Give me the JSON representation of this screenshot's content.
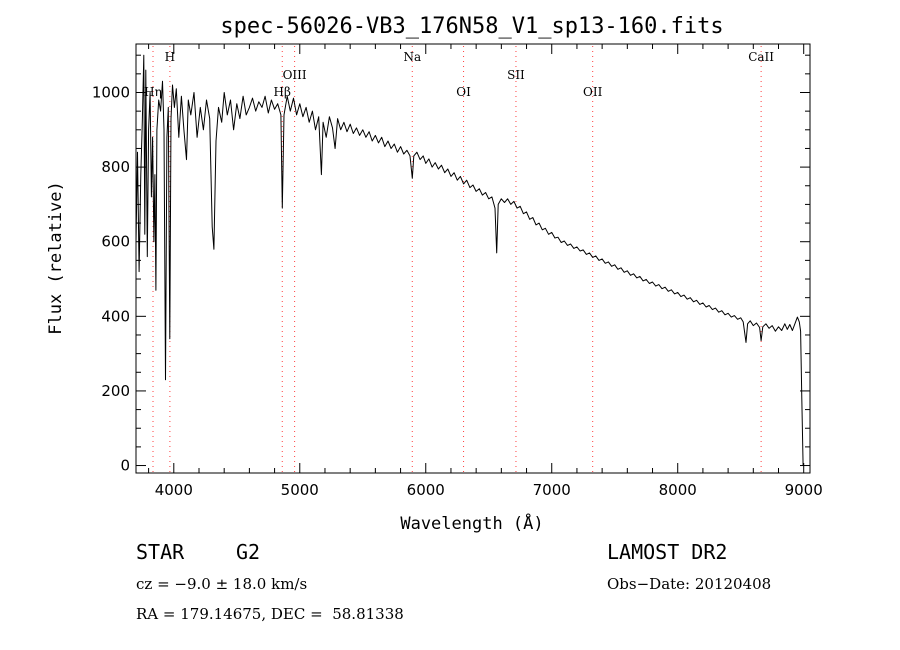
{
  "chart_data": {
    "type": "line",
    "title": "spec-56026-VB3_176N58_V1_sp13-160.fits",
    "xlabel": "Wavelength (Å)",
    "ylabel": "Flux (relative)",
    "xlim": [
      3700,
      9050
    ],
    "ylim": [
      -20,
      1130
    ],
    "xticks": [
      4000,
      5000,
      6000,
      7000,
      8000,
      9000
    ],
    "yticks": [
      0,
      200,
      400,
      600,
      800,
      1000
    ],
    "grid": false,
    "series": [
      {
        "name": "spectrum",
        "color": "#000000",
        "points": [
          [
            3700,
            600
          ],
          [
            3712,
            840
          ],
          [
            3725,
            520
          ],
          [
            3738,
            780
          ],
          [
            3750,
            920
          ],
          [
            3762,
            1100
          ],
          [
            3770,
            620
          ],
          [
            3778,
            1060
          ],
          [
            3790,
            560
          ],
          [
            3800,
            900
          ],
          [
            3812,
            1000
          ],
          [
            3822,
            720
          ],
          [
            3832,
            880
          ],
          [
            3842,
            600
          ],
          [
            3850,
            780
          ],
          [
            3858,
            470
          ],
          [
            3866,
            900
          ],
          [
            3880,
            980
          ],
          [
            3895,
            950
          ],
          [
            3910,
            1030
          ],
          [
            3922,
            900
          ],
          [
            3934,
            230
          ],
          [
            3945,
            880
          ],
          [
            3956,
            960
          ],
          [
            3968,
            340
          ],
          [
            3978,
            930
          ],
          [
            3990,
            1020
          ],
          [
            4005,
            960
          ],
          [
            4020,
            1010
          ],
          [
            4040,
            880
          ],
          [
            4060,
            990
          ],
          [
            4080,
            900
          ],
          [
            4101,
            820
          ],
          [
            4115,
            980
          ],
          [
            4135,
            940
          ],
          [
            4160,
            1000
          ],
          [
            4185,
            880
          ],
          [
            4210,
            960
          ],
          [
            4235,
            900
          ],
          [
            4260,
            980
          ],
          [
            4285,
            930
          ],
          [
            4305,
            640
          ],
          [
            4318,
            580
          ],
          [
            4335,
            870
          ],
          [
            4355,
            960
          ],
          [
            4380,
            920
          ],
          [
            4400,
            1000
          ],
          [
            4425,
            940
          ],
          [
            4450,
            980
          ],
          [
            4475,
            900
          ],
          [
            4500,
            970
          ],
          [
            4525,
            930
          ],
          [
            4550,
            990
          ],
          [
            4575,
            940
          ],
          [
            4600,
            960
          ],
          [
            4625,
            985
          ],
          [
            4650,
            950
          ],
          [
            4675,
            975
          ],
          [
            4700,
            960
          ],
          [
            4725,
            990
          ],
          [
            4750,
            945
          ],
          [
            4775,
            980
          ],
          [
            4800,
            955
          ],
          [
            4825,
            970
          ],
          [
            4850,
            940
          ],
          [
            4861,
            690
          ],
          [
            4875,
            940
          ],
          [
            4900,
            990
          ],
          [
            4925,
            950
          ],
          [
            4950,
            985
          ],
          [
            4975,
            940
          ],
          [
            5000,
            970
          ],
          [
            5025,
            935
          ],
          [
            5050,
            960
          ],
          [
            5075,
            920
          ],
          [
            5100,
            950
          ],
          [
            5125,
            900
          ],
          [
            5150,
            935
          ],
          [
            5172,
            780
          ],
          [
            5185,
            920
          ],
          [
            5210,
            880
          ],
          [
            5235,
            935
          ],
          [
            5260,
            905
          ],
          [
            5280,
            850
          ],
          [
            5300,
            930
          ],
          [
            5325,
            900
          ],
          [
            5350,
            920
          ],
          [
            5375,
            895
          ],
          [
            5400,
            915
          ],
          [
            5425,
            890
          ],
          [
            5450,
            905
          ],
          [
            5475,
            885
          ],
          [
            5500,
            900
          ],
          [
            5525,
            880
          ],
          [
            5550,
            895
          ],
          [
            5575,
            870
          ],
          [
            5600,
            885
          ],
          [
            5625,
            865
          ],
          [
            5650,
            880
          ],
          [
            5675,
            855
          ],
          [
            5700,
            870
          ],
          [
            5725,
            850
          ],
          [
            5750,
            862
          ],
          [
            5775,
            840
          ],
          [
            5800,
            855
          ],
          [
            5825,
            835
          ],
          [
            5850,
            845
          ],
          [
            5875,
            830
          ],
          [
            5893,
            770
          ],
          [
            5905,
            830
          ],
          [
            5930,
            840
          ],
          [
            5955,
            820
          ],
          [
            5980,
            830
          ],
          [
            6000,
            810
          ],
          [
            6025,
            822
          ],
          [
            6050,
            800
          ],
          [
            6075,
            812
          ],
          [
            6100,
            795
          ],
          [
            6125,
            805
          ],
          [
            6150,
            785
          ],
          [
            6175,
            795
          ],
          [
            6200,
            775
          ],
          [
            6225,
            785
          ],
          [
            6250,
            765
          ],
          [
            6275,
            775
          ],
          [
            6300,
            755
          ],
          [
            6325,
            765
          ],
          [
            6350,
            745
          ],
          [
            6375,
            752
          ],
          [
            6400,
            735
          ],
          [
            6425,
            742
          ],
          [
            6450,
            725
          ],
          [
            6475,
            732
          ],
          [
            6500,
            715
          ],
          [
            6525,
            720
          ],
          [
            6550,
            690
          ],
          [
            6563,
            570
          ],
          [
            6575,
            700
          ],
          [
            6600,
            715
          ],
          [
            6625,
            705
          ],
          [
            6650,
            715
          ],
          [
            6675,
            700
          ],
          [
            6700,
            708
          ],
          [
            6725,
            690
          ],
          [
            6750,
            695
          ],
          [
            6775,
            675
          ],
          [
            6800,
            680
          ],
          [
            6825,
            660
          ],
          [
            6850,
            665
          ],
          [
            6875,
            645
          ],
          [
            6900,
            650
          ],
          [
            6925,
            632
          ],
          [
            6950,
            636
          ],
          [
            6975,
            620
          ],
          [
            7000,
            625
          ],
          [
            7025,
            610
          ],
          [
            7050,
            612
          ],
          [
            7075,
            598
          ],
          [
            7100,
            602
          ],
          [
            7125,
            590
          ],
          [
            7150,
            594
          ],
          [
            7175,
            582
          ],
          [
            7200,
            586
          ],
          [
            7225,
            575
          ],
          [
            7250,
            578
          ],
          [
            7275,
            566
          ],
          [
            7300,
            570
          ],
          [
            7325,
            558
          ],
          [
            7350,
            562
          ],
          [
            7375,
            550
          ],
          [
            7400,
            554
          ],
          [
            7425,
            542
          ],
          [
            7450,
            546
          ],
          [
            7475,
            534
          ],
          [
            7500,
            538
          ],
          [
            7525,
            526
          ],
          [
            7550,
            530
          ],
          [
            7575,
            518
          ],
          [
            7600,
            522
          ],
          [
            7625,
            510
          ],
          [
            7650,
            514
          ],
          [
            7675,
            503
          ],
          [
            7700,
            507
          ],
          [
            7725,
            495
          ],
          [
            7750,
            499
          ],
          [
            7775,
            488
          ],
          [
            7800,
            492
          ],
          [
            7825,
            481
          ],
          [
            7850,
            485
          ],
          [
            7875,
            474
          ],
          [
            7900,
            478
          ],
          [
            7925,
            467
          ],
          [
            7950,
            471
          ],
          [
            7975,
            460
          ],
          [
            8000,
            464
          ],
          [
            8025,
            453
          ],
          [
            8050,
            457
          ],
          [
            8075,
            446
          ],
          [
            8100,
            450
          ],
          [
            8125,
            439
          ],
          [
            8150,
            443
          ],
          [
            8175,
            432
          ],
          [
            8200,
            436
          ],
          [
            8225,
            425
          ],
          [
            8250,
            429
          ],
          [
            8275,
            418
          ],
          [
            8300,
            422
          ],
          [
            8325,
            411
          ],
          [
            8350,
            415
          ],
          [
            8375,
            404
          ],
          [
            8400,
            408
          ],
          [
            8425,
            398
          ],
          [
            8450,
            402
          ],
          [
            8475,
            392
          ],
          [
            8500,
            396
          ],
          [
            8520,
            385
          ],
          [
            8542,
            330
          ],
          [
            8555,
            380
          ],
          [
            8575,
            388
          ],
          [
            8600,
            375
          ],
          [
            8625,
            382
          ],
          [
            8650,
            370
          ],
          [
            8662,
            335
          ],
          [
            8675,
            372
          ],
          [
            8700,
            380
          ],
          [
            8725,
            368
          ],
          [
            8750,
            375
          ],
          [
            8775,
            360
          ],
          [
            8800,
            372
          ],
          [
            8825,
            362
          ],
          [
            8850,
            380
          ],
          [
            8870,
            365
          ],
          [
            8890,
            378
          ],
          [
            8910,
            362
          ],
          [
            8930,
            380
          ],
          [
            8950,
            398
          ],
          [
            8965,
            385
          ],
          [
            8975,
            360
          ],
          [
            8985,
            180
          ],
          [
            8995,
            0
          ]
        ]
      }
    ],
    "line_markers": [
      {
        "label": "Hη",
        "wavelength": 3835,
        "color": "#ff4040",
        "label_row": 2
      },
      {
        "label": "H",
        "wavelength": 3969,
        "color": "#ff4040",
        "label_row": 0
      },
      {
        "label": "Hβ",
        "wavelength": 4861,
        "color": "#ff4040",
        "label_row": 2
      },
      {
        "label": "OIII",
        "wavelength": 4959,
        "color": "#ff4040",
        "label_row": 1
      },
      {
        "label": "Na",
        "wavelength": 5893,
        "color": "#ff4040",
        "label_row": 0
      },
      {
        "label": "OI",
        "wavelength": 6300,
        "color": "#ff4040",
        "label_row": 2
      },
      {
        "label": "SII",
        "wavelength": 6716,
        "color": "#ff4040",
        "label_row": 1
      },
      {
        "label": "OII",
        "wavelength": 7325,
        "color": "#ff4040",
        "label_row": 2
      },
      {
        "label": "CaII",
        "wavelength": 8662,
        "color": "#ff4040",
        "label_row": 0
      }
    ]
  },
  "info": {
    "object_class": "STAR",
    "subclass": "G2",
    "survey": "LAMOST DR2",
    "cz": "cz = −9.0 ± 18.0 km/s",
    "obs_date": "Obs−Date: 20120408",
    "coords": "RA = 179.14675, DEC =  58.81338"
  }
}
